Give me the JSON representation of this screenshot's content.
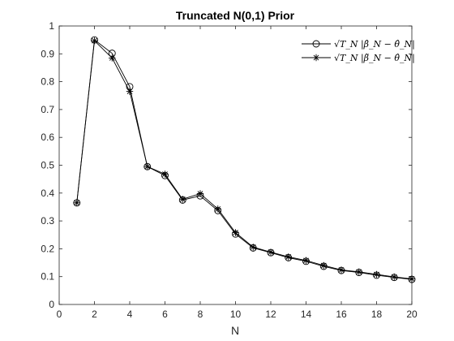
{
  "chart_data": {
    "type": "line",
    "title": "Truncated N(0,1) Prior",
    "xlabel": "N",
    "ylabel": "",
    "xlim": [
      0,
      20
    ],
    "ylim": [
      0,
      1
    ],
    "xticks": [
      0,
      2,
      4,
      6,
      8,
      10,
      12,
      14,
      16,
      18,
      20
    ],
    "yticks": [
      0,
      0.1,
      0.2,
      0.3,
      0.4,
      0.5,
      0.6,
      0.7,
      0.8,
      0.9,
      1
    ],
    "grid": false,
    "legend_position": "top-right",
    "x": [
      1,
      2,
      3,
      4,
      5,
      6,
      7,
      8,
      9,
      10,
      11,
      12,
      13,
      14,
      15,
      16,
      17,
      18,
      19,
      20
    ],
    "series": [
      {
        "name": "√T_N |β̂_N − θ̂_N|",
        "marker": "circle",
        "color": "#000000",
        "values": [
          0.365,
          0.95,
          0.902,
          0.782,
          0.495,
          0.463,
          0.375,
          0.39,
          0.337,
          0.253,
          0.203,
          0.186,
          0.168,
          0.155,
          0.137,
          0.122,
          0.115,
          0.105,
          0.097,
          0.09
        ]
      },
      {
        "name": "√T_N |β̃_N − θ̂_N|",
        "marker": "asterisk",
        "color": "#000000",
        "values": [
          0.365,
          0.947,
          0.885,
          0.765,
          0.495,
          0.468,
          0.378,
          0.398,
          0.343,
          0.258,
          0.206,
          0.188,
          0.171,
          0.158,
          0.14,
          0.124,
          0.117,
          0.108,
          0.099,
          0.092
        ]
      }
    ]
  }
}
